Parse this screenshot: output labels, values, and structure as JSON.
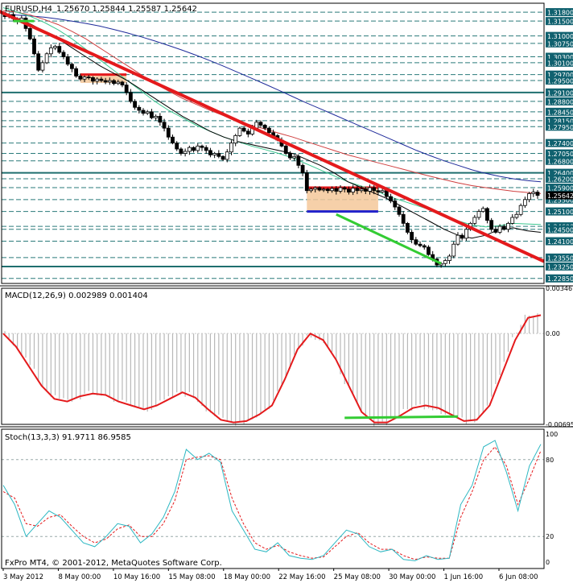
{
  "header": {
    "symbol": "EURUSD,H4",
    "ohlc": "1.25670 1.25844 1.25587 1.25642",
    "copyright": "FxPro MT4, © 2001-2012, MetaQuotes Software Corp."
  },
  "colors": {
    "candle": "#000000",
    "trendline": "#e41a1c",
    "ma_black": "#000000",
    "ma_green": "#3cc890",
    "ma_red": "#d04040",
    "ma_blue": "#1e2a9a",
    "level_teal": "#1f6f6f",
    "axis_label_bg": "#10616f",
    "macd_signal": "#e41a1c",
    "macd_hist": "#b8b8b8",
    "divergence_green": "#33cc33",
    "box_fill": "#f5c89a",
    "stoch_main": "#2bb7c2",
    "stoch_signal": "#e41a1c"
  },
  "chart_data": [
    {
      "type": "candlestick",
      "title": "EURUSD,H4",
      "x_tick_labels": [
        "3 May 2012",
        "8 May 00:00",
        "10 May 16:00",
        "15 May 08:00",
        "18 May 00:00",
        "22 May 16:00",
        "25 May 08:00",
        "30 May 00:00",
        "1 Jun 16:00",
        "6 Jun 08:00"
      ],
      "ylim": [
        1.2268,
        1.321
      ],
      "price_levels": [
        "1.31800",
        "1.31500",
        "1.31000",
        "1.30750",
        "1.30300",
        "1.30100",
        "1.29700",
        "1.29500",
        "1.29100",
        "1.28800",
        "1.28450",
        "1.28150",
        "1.27950",
        "1.27400",
        "1.27050",
        "1.26800",
        "1.26400",
        "1.26200",
        "1.25900",
        "1.25500",
        "1.25100",
        "1.24600",
        "1.24500",
        "1.24100",
        "1.23550",
        "1.23250",
        "1.22850"
      ],
      "price_levels_shown": [
        1.318,
        1.315,
        1.31,
        1.3075,
        1.303,
        1.301,
        1.297,
        1.295,
        1.291,
        1.288,
        1.2845,
        1.2815,
        1.2795,
        1.274,
        1.2705,
        1.268,
        1.264,
        1.262,
        1.259,
        1.255,
        1.251,
        1.246,
        1.245,
        1.241,
        1.2355,
        1.2325,
        1.2285
      ],
      "current_price": 1.25642,
      "close_series": [
        1.3165,
        1.3172,
        1.3158,
        1.315,
        1.316,
        1.3125,
        1.309,
        1.304,
        1.2985,
        1.301,
        1.304,
        1.306,
        1.3065,
        1.3045,
        1.303,
        1.3005,
        1.299,
        1.2965,
        1.2955,
        1.2962,
        1.296,
        1.2948,
        1.2955,
        1.295,
        1.2945,
        1.295,
        1.294,
        1.2945,
        1.2935,
        1.291,
        1.288,
        1.286,
        1.285,
        1.284,
        1.2845,
        1.2825,
        1.283,
        1.281,
        1.279,
        1.276,
        1.274,
        1.272,
        1.2705,
        1.2712,
        1.2725,
        1.2715,
        1.273,
        1.2725,
        1.2715,
        1.27,
        1.2705,
        1.2695,
        1.2685,
        1.271,
        1.274,
        1.2765,
        1.279,
        1.278,
        1.277,
        1.279,
        1.281,
        1.28,
        1.279,
        1.2775,
        1.2765,
        1.275,
        1.273,
        1.2705,
        1.269,
        1.2695,
        1.2665,
        1.264,
        1.258,
        1.2585,
        1.259,
        1.2582,
        1.2585,
        1.258,
        1.2587,
        1.2578,
        1.259,
        1.2585,
        1.2575,
        1.2588,
        1.258,
        1.2585,
        1.2578,
        1.259,
        1.258,
        1.2575,
        1.258,
        1.256,
        1.2545,
        1.2525,
        1.25,
        1.247,
        1.244,
        1.2415,
        1.24,
        1.2395,
        1.239,
        1.2365,
        1.235,
        1.233,
        1.2335,
        1.2345,
        1.236,
        1.24,
        1.243,
        1.242,
        1.245,
        1.247,
        1.249,
        1.251,
        1.252,
        1.248,
        1.245,
        1.244,
        1.246,
        1.245,
        1.247,
        1.249,
        1.25,
        1.253,
        1.255,
        1.257,
        1.2575,
        1.2564
      ],
      "ma_black": [
        1.3175,
        1.316,
        1.314,
        1.3115,
        1.309,
        1.306,
        1.303,
        1.3,
        1.2975,
        1.295,
        1.292,
        1.289,
        1.286,
        1.283,
        1.2805,
        1.278,
        1.276,
        1.2745,
        1.2735,
        1.2725,
        1.2715,
        1.2705,
        1.2685,
        1.2665,
        1.264,
        1.261,
        1.259,
        1.257,
        1.255,
        1.2525,
        1.25,
        1.2475,
        1.245,
        1.243,
        1.242,
        1.243,
        1.245,
        1.2455,
        1.2445,
        1.244
      ],
      "ma_green": [
        1.3195,
        1.318,
        1.3165,
        1.3145,
        1.312,
        1.309,
        1.3055,
        1.302,
        1.2985,
        1.295,
        1.2915,
        1.288,
        1.285,
        1.2825,
        1.28,
        1.278,
        1.276,
        1.2745,
        1.273,
        1.2718,
        1.2705,
        1.269,
        1.267,
        1.265,
        1.263,
        1.261,
        1.2595,
        1.258,
        1.256,
        1.2545,
        1.253,
        1.2515,
        1.2498,
        1.2478,
        1.2465,
        1.2458,
        1.2462,
        1.247,
        1.2468,
        1.2466
      ],
      "ma_red": [
        1.3185,
        1.318,
        1.317,
        1.3155,
        1.3138,
        1.3115,
        1.309,
        1.306,
        1.303,
        1.3,
        1.297,
        1.294,
        1.2915,
        1.289,
        1.287,
        1.285,
        1.2832,
        1.2815,
        1.28,
        1.2787,
        1.2773,
        1.276,
        1.2745,
        1.273,
        1.2715,
        1.27,
        1.2688,
        1.2676,
        1.2664,
        1.2652,
        1.264,
        1.2628,
        1.2617,
        1.2606,
        1.2597,
        1.259,
        1.2584,
        1.2578,
        1.2574,
        1.257
      ],
      "ma_blue": [
        1.3172,
        1.317,
        1.3167,
        1.3163,
        1.3157,
        1.315,
        1.3142,
        1.3133,
        1.3122,
        1.311,
        1.3097,
        1.3083,
        1.3068,
        1.3052,
        1.3035,
        1.3017,
        1.2998,
        1.2978,
        1.2958,
        1.2938,
        1.2917,
        1.2896,
        1.2875,
        1.2855,
        1.2835,
        1.2815,
        1.2795,
        1.2775,
        1.2755,
        1.2735,
        1.2715,
        1.2697,
        1.268,
        1.2665,
        1.265,
        1.2638,
        1.2628,
        1.262,
        1.2614,
        1.261
      ],
      "trendline": {
        "from": [
          1,
          1.319
        ],
        "to": [
          141,
          1.238
        ]
      },
      "support_lines": [
        1.291,
        1.264,
        1.2325
      ]
    },
    {
      "type": "bar_line",
      "title": "MACD(12,26,9) 0.002989 0.001404",
      "ylim": [
        -0.00695,
        0.00346
      ],
      "y_tick_labels": [
        "0.00346",
        "0.00",
        "-0.00695"
      ],
      "signal": [
        0.0,
        -0.001,
        -0.0025,
        -0.004,
        -0.005,
        -0.0052,
        -0.0048,
        -0.0046,
        -0.0047,
        -0.0052,
        -0.0055,
        -0.0058,
        -0.0055,
        -0.005,
        -0.0045,
        -0.0049,
        -0.0058,
        -0.0066,
        -0.0068,
        -0.0067,
        -0.0062,
        -0.0055,
        -0.0035,
        -0.0012,
        -0.0,
        -0.0005,
        -0.002,
        -0.004,
        -0.006,
        -0.0068,
        -0.0068,
        -0.0063,
        -0.0057,
        -0.0055,
        -0.0057,
        -0.0062,
        -0.0067,
        -0.0066,
        -0.0055,
        -0.003,
        -0.0005,
        0.0012,
        0.0014
      ]
    },
    {
      "type": "line",
      "title": "Stoch(13,3,3) 91.9711 86.9585",
      "ylim": [
        0,
        100
      ],
      "y_tick_labels": [
        "100",
        "80",
        "20",
        "0"
      ],
      "main": [
        60,
        45,
        20,
        30,
        40,
        35,
        25,
        15,
        12,
        20,
        30,
        28,
        15,
        22,
        35,
        55,
        88,
        80,
        85,
        78,
        40,
        25,
        10,
        8,
        15,
        5,
        3,
        2,
        5,
        15,
        25,
        22,
        12,
        8,
        10,
        2,
        1,
        5,
        2,
        3,
        45,
        60,
        90,
        95,
        70,
        40,
        75,
        92
      ],
      "signal": [
        55,
        50,
        30,
        28,
        35,
        37,
        28,
        20,
        15,
        18,
        26,
        29,
        20,
        20,
        30,
        48,
        80,
        82,
        83,
        80,
        50,
        30,
        15,
        10,
        13,
        8,
        5,
        3,
        4,
        12,
        20,
        23,
        15,
        10,
        10,
        5,
        2,
        4,
        3,
        3,
        35,
        55,
        80,
        90,
        75,
        45,
        65,
        87
      ]
    }
  ]
}
